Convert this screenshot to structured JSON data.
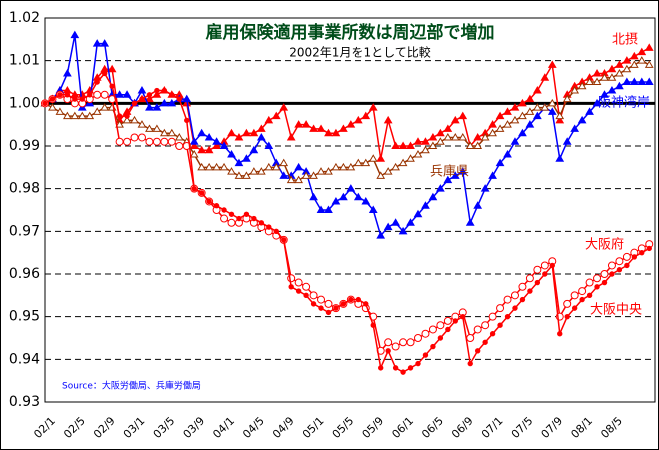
{
  "chart_data": {
    "type": "line",
    "title": "雇用保険適用事業所数は周辺部で増加",
    "subtitle": "2002年1月を1として比較",
    "source": "Source：大阪労働局、兵庫労働局",
    "categories": [
      "02/1",
      null,
      null,
      null,
      "02/5",
      null,
      null,
      null,
      "02/9",
      null,
      null,
      null,
      "03/1",
      null,
      null,
      null,
      "03/5",
      null,
      null,
      null,
      "03/9",
      null,
      null,
      null,
      "04/1",
      null,
      null,
      null,
      "04/5",
      null,
      null,
      null,
      "04/9",
      null,
      null,
      null,
      "05/1",
      null,
      null,
      null,
      "05/5",
      null,
      null,
      null,
      "05/9",
      null,
      null,
      null,
      "06/1",
      null,
      null,
      null,
      "06/5",
      null,
      null,
      null,
      "06/9",
      null,
      null,
      null,
      "07/1",
      null,
      null,
      null,
      "07/5",
      null,
      null,
      null,
      "07/9",
      null,
      null,
      null,
      "08/1",
      null,
      null,
      null,
      "08/5",
      null,
      null,
      null,
      null,
      null
    ],
    "ylim": [
      0.93,
      1.02
    ],
    "yticks": [
      0.93,
      0.94,
      0.95,
      0.96,
      0.97,
      0.98,
      0.99,
      {
        "value": 1,
        "label": "1.00"
      },
      1.01,
      1.02
    ],
    "grid": true,
    "reference_line": 1,
    "series": [
      {
        "name": "北摂",
        "color": "#ff0000",
        "marker": "triangle",
        "values": [
          1.0,
          1.001,
          1.003,
          1.003,
          1.002,
          1.002,
          1.003,
          1.006,
          1.008,
          1.008,
          0.996,
          0.998,
          1.0,
          1.001,
          1.001,
          1.002,
          1.003,
          1.002,
          1.002,
          1.0,
          0.99,
          0.989,
          0.989,
          0.99,
          0.991,
          0.993,
          0.992,
          0.993,
          0.993,
          0.994,
          0.996,
          0.997,
          0.999,
          0.992,
          0.995,
          0.995,
          0.994,
          0.994,
          0.993,
          0.993,
          0.994,
          0.995,
          0.996,
          0.997,
          0.999,
          0.987,
          0.996,
          0.99,
          0.99,
          0.99,
          0.991,
          0.991,
          0.992,
          0.993,
          0.994,
          0.996,
          0.997,
          0.99,
          0.992,
          0.993,
          0.995,
          0.997,
          0.998,
          0.999,
          1.0,
          1.001,
          1.003,
          1.006,
          1.009,
          0.996,
          1.002,
          1.004,
          1.005,
          1.006,
          1.007,
          1.007,
          1.008,
          1.009,
          1.01,
          1.011,
          1.012,
          1.013
        ]
      },
      {
        "name": "阪神湾岸",
        "color": "#0000ff",
        "marker": "triangle",
        "values": [
          1.0,
          1.001,
          1.003,
          1.007,
          1.016,
          0.999,
          1.0,
          1.014,
          1.014,
          1.002,
          1.002,
          1.002,
          1.0,
          1.003,
          0.999,
          0.999,
          1.0,
          1.0,
          1.001,
          1.001,
          0.991,
          0.993,
          0.992,
          0.991,
          0.99,
          0.988,
          0.986,
          0.987,
          0.989,
          0.992,
          0.99,
          0.986,
          0.983,
          0.983,
          0.985,
          0.984,
          0.978,
          0.975,
          0.975,
          0.977,
          0.978,
          0.98,
          0.978,
          0.977,
          0.975,
          0.969,
          0.971,
          0.972,
          0.97,
          0.972,
          0.974,
          0.976,
          0.978,
          0.98,
          0.982,
          0.983,
          0.984,
          0.972,
          0.976,
          0.98,
          0.983,
          0.986,
          0.988,
          0.991,
          0.993,
          0.995,
          0.997,
          0.999,
          0.998,
          0.987,
          0.991,
          0.994,
          0.996,
          0.998,
          1.0,
          1.002,
          1.003,
          1.004,
          1.005,
          1.005,
          1.005,
          1.005
        ]
      },
      {
        "name": "兵庫県",
        "color": "#993300",
        "marker": "open_triangle",
        "values": [
          1.0,
          0.999,
          0.998,
          0.997,
          0.997,
          0.997,
          0.997,
          0.998,
          0.999,
          0.999,
          0.995,
          0.996,
          0.996,
          0.995,
          0.994,
          0.994,
          0.993,
          0.993,
          0.992,
          0.991,
          0.988,
          0.985,
          0.985,
          0.985,
          0.985,
          0.984,
          0.983,
          0.983,
          0.984,
          0.984,
          0.985,
          0.985,
          0.986,
          0.982,
          0.982,
          0.983,
          0.983,
          0.984,
          0.984,
          0.985,
          0.985,
          0.985,
          0.986,
          0.986,
          0.987,
          0.983,
          0.984,
          0.985,
          0.986,
          0.987,
          0.988,
          0.989,
          0.99,
          0.991,
          0.992,
          0.992,
          0.992,
          0.99,
          0.99,
          0.992,
          0.993,
          0.994,
          0.995,
          0.996,
          0.997,
          0.998,
          0.999,
          0.999,
          1.0,
          0.997,
          1.001,
          1.003,
          1.004,
          1.005,
          1.005,
          1.006,
          1.006,
          1.007,
          1.008,
          1.009,
          1.01,
          1.009
        ]
      },
      {
        "name": "大阪府",
        "color": "#ff0000",
        "marker": "open_circle",
        "values": [
          1.0,
          1.001,
          1.002,
          1.001,
          1.0,
          1.0,
          1.001,
          1.002,
          1.002,
          1.001,
          0.991,
          0.991,
          0.992,
          0.992,
          0.991,
          0.991,
          0.991,
          0.991,
          0.99,
          0.99,
          0.98,
          0.979,
          0.977,
          0.975,
          0.973,
          0.972,
          0.972,
          0.973,
          0.972,
          0.971,
          0.97,
          0.969,
          0.968,
          0.959,
          0.958,
          0.957,
          0.955,
          0.954,
          0.953,
          0.952,
          0.953,
          0.954,
          0.953,
          0.952,
          0.95,
          0.942,
          0.944,
          0.943,
          0.944,
          0.944,
          0.945,
          0.946,
          0.947,
          0.948,
          0.949,
          0.95,
          0.951,
          0.945,
          0.947,
          0.948,
          0.95,
          0.952,
          0.954,
          0.955,
          0.957,
          0.959,
          0.961,
          0.962,
          0.963,
          0.95,
          0.953,
          0.955,
          0.956,
          0.958,
          0.959,
          0.96,
          0.962,
          0.963,
          0.964,
          0.965,
          0.966,
          0.967
        ]
      },
      {
        "name": "大阪中央",
        "color": "#ff0000",
        "marker": "dot",
        "values": [
          1.0,
          1.001,
          1.002,
          1.002,
          1.001,
          1.001,
          1.002,
          1.005,
          1.007,
          1.004,
          0.997,
          0.997,
          1.0,
          1.001,
          1.002,
          1.003,
          1.003,
          1.002,
          1.001,
          0.996,
          0.98,
          0.979,
          0.977,
          0.976,
          0.975,
          0.974,
          0.973,
          0.974,
          0.973,
          0.972,
          0.971,
          0.97,
          0.968,
          0.957,
          0.956,
          0.955,
          0.953,
          0.952,
          0.951,
          0.952,
          0.953,
          0.954,
          0.954,
          0.953,
          0.948,
          0.938,
          0.942,
          0.938,
          0.937,
          0.938,
          0.939,
          0.941,
          0.943,
          0.945,
          0.947,
          0.949,
          0.95,
          0.939,
          0.942,
          0.944,
          0.946,
          0.948,
          0.95,
          0.952,
          0.954,
          0.956,
          0.958,
          0.96,
          0.962,
          0.946,
          0.95,
          0.952,
          0.954,
          0.955,
          0.957,
          0.958,
          0.96,
          0.961,
          0.962,
          0.964,
          0.965,
          0.966
        ]
      }
    ]
  }
}
